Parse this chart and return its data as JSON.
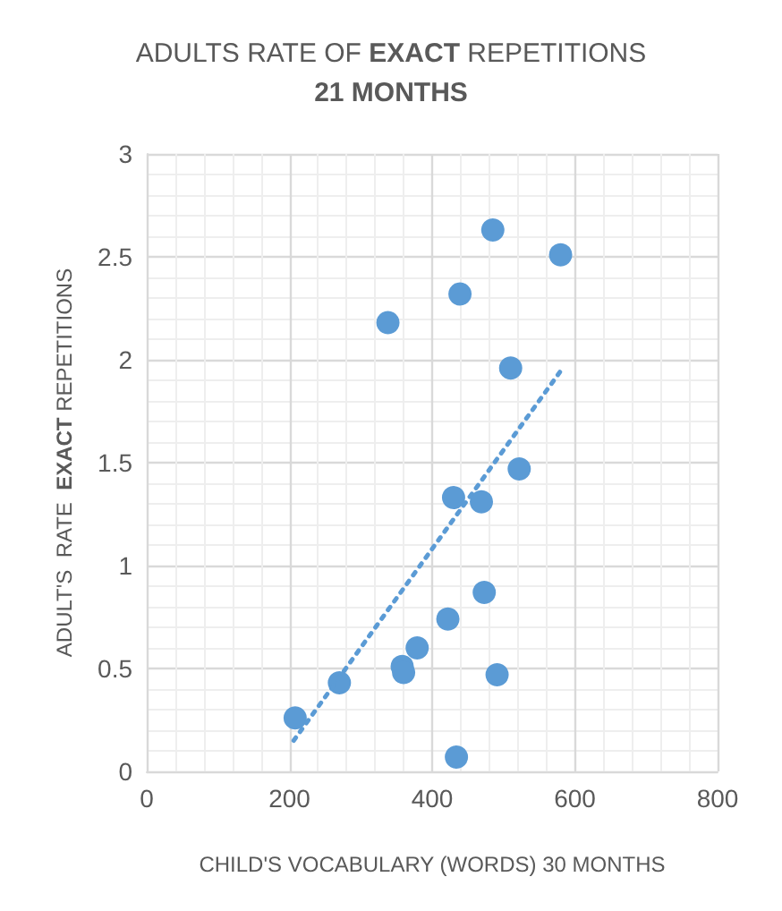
{
  "chart_data": {
    "type": "scatter",
    "title": "ADULTS RATE OF **EXACT** REPETITIONS\n**21 MONTHS**",
    "xlabel": "CHILD'S VOCABULARY (WORDS) 30 MONTHS",
    "ylabel": "ADULT'S  RATE  **EXACT** REPETITIONS",
    "x": [
      208,
      270,
      358,
      360,
      379,
      422,
      473,
      491,
      434,
      430,
      469,
      522,
      510,
      338,
      439,
      485,
      580
    ],
    "series": [
      {
        "color": "#5b9bd5",
        "marker": "circle",
        "values": [
          0.26,
          0.43,
          0.51,
          0.48,
          0.6,
          0.74,
          0.87,
          0.47,
          0.07,
          1.33,
          1.31,
          1.47,
          1.96,
          2.18,
          2.32,
          2.63,
          2.51
        ]
      },
      {
        "type": "line",
        "color": "#5b9bd5",
        "line_style": "dotted",
        "marker": "none",
        "x": [
          206,
          581
        ],
        "values": [
          0.15,
          1.95
        ]
      }
    ],
    "xlim": [
      0,
      800
    ],
    "xticks": [
      0,
      200,
      400,
      600,
      800
    ],
    "ylim": [
      0,
      3
    ],
    "yticks": [
      0,
      0.5,
      1,
      1.5,
      2,
      2.5,
      3
    ],
    "grid": true
  }
}
